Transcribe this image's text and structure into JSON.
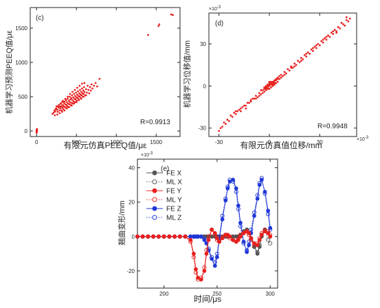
{
  "chart_data": [
    {
      "id": "c",
      "type": "scatter",
      "panel_label": "(c)",
      "xlabel": "有限元仿真PEEQ值/με",
      "ylabel": "机器学习预测PEEQ值/με",
      "annotation": "R=0.9913",
      "xlim": [
        -80,
        1800
      ],
      "ylim": [
        -80,
        1800
      ],
      "xticks": [
        0,
        500,
        1000,
        1500
      ],
      "yticks": [
        0,
        500,
        1000,
        1500
      ],
      "colors": {
        "points": "#e8201e"
      },
      "points": [
        [
          0,
          -25
        ],
        [
          0,
          -10
        ],
        [
          0,
          0
        ],
        [
          0,
          8
        ],
        [
          2,
          15
        ],
        [
          3,
          -5
        ],
        [
          4,
          30
        ],
        [
          1,
          -18
        ],
        [
          5,
          5
        ],
        [
          6,
          12
        ],
        [
          1400,
          1400
        ],
        [
          1530,
          1530
        ],
        [
          1540,
          1555
        ],
        [
          1690,
          1700
        ],
        [
          1710,
          1690
        ],
        [
          200,
          250
        ],
        [
          215,
          270
        ],
        [
          225,
          300
        ],
        [
          235,
          285
        ],
        [
          245,
          330
        ],
        [
          250,
          360
        ],
        [
          260,
          310
        ],
        [
          265,
          280
        ],
        [
          275,
          340
        ],
        [
          280,
          380
        ],
        [
          290,
          300
        ],
        [
          295,
          355
        ],
        [
          300,
          330
        ],
        [
          305,
          395
        ],
        [
          310,
          360
        ],
        [
          315,
          300
        ],
        [
          320,
          420
        ],
        [
          325,
          345
        ],
        [
          330,
          380
        ],
        [
          335,
          320
        ],
        [
          340,
          360
        ],
        [
          345,
          410
        ],
        [
          350,
          430
        ],
        [
          355,
          350
        ],
        [
          360,
          390
        ],
        [
          365,
          340
        ],
        [
          370,
          450
        ],
        [
          375,
          380
        ],
        [
          380,
          420
        ],
        [
          385,
          360
        ],
        [
          390,
          470
        ],
        [
          395,
          400
        ],
        [
          400,
          350
        ],
        [
          405,
          440
        ],
        [
          410,
          390
        ],
        [
          415,
          500
        ],
        [
          420,
          420
        ],
        [
          425,
          460
        ],
        [
          430,
          380
        ],
        [
          435,
          480
        ],
        [
          440,
          410
        ],
        [
          445,
          520
        ],
        [
          450,
          450
        ],
        [
          455,
          400
        ],
        [
          460,
          490
        ],
        [
          465,
          430
        ],
        [
          470,
          540
        ],
        [
          475,
          470
        ],
        [
          480,
          420
        ],
        [
          485,
          510
        ],
        [
          490,
          460
        ],
        [
          495,
          560
        ],
        [
          500,
          490
        ],
        [
          505,
          440
        ],
        [
          510,
          530
        ],
        [
          515,
          480
        ],
        [
          520,
          580
        ],
        [
          525,
          510
        ],
        [
          530,
          460
        ],
        [
          535,
          550
        ],
        [
          540,
          500
        ],
        [
          545,
          600
        ],
        [
          550,
          530
        ],
        [
          555,
          480
        ],
        [
          560,
          570
        ],
        [
          565,
          520
        ],
        [
          570,
          620
        ],
        [
          575,
          550
        ],
        [
          580,
          500
        ],
        [
          585,
          590
        ],
        [
          590,
          540
        ],
        [
          595,
          640
        ],
        [
          600,
          570
        ],
        [
          610,
          520
        ],
        [
          620,
          610
        ],
        [
          630,
          560
        ],
        [
          640,
          660
        ],
        [
          650,
          600
        ],
        [
          660,
          550
        ],
        [
          670,
          640
        ],
        [
          680,
          590
        ],
        [
          690,
          680
        ],
        [
          700,
          620
        ],
        [
          720,
          660
        ],
        [
          740,
          700
        ],
        [
          760,
          650
        ],
        [
          790,
          760
        ],
        [
          230,
          230
        ],
        [
          260,
          240
        ],
        [
          290,
          260
        ],
        [
          320,
          280
        ],
        [
          350,
          300
        ],
        [
          380,
          330
        ],
        [
          410,
          350
        ],
        [
          440,
          370
        ],
        [
          470,
          400
        ],
        [
          500,
          420
        ],
        [
          530,
          450
        ],
        [
          560,
          470
        ],
        [
          590,
          500
        ],
        [
          620,
          520
        ],
        [
          240,
          320
        ],
        [
          270,
          360
        ],
        [
          300,
          400
        ],
        [
          330,
          440
        ],
        [
          360,
          470
        ],
        [
          390,
          500
        ],
        [
          420,
          540
        ],
        [
          450,
          570
        ],
        [
          480,
          600
        ],
        [
          510,
          630
        ],
        [
          540,
          660
        ],
        [
          570,
          690
        ],
        [
          600,
          700
        ]
      ]
    },
    {
      "id": "d",
      "type": "scatter",
      "panel_label": "(d)",
      "xlabel": "有限元仿真值位移/mm",
      "ylabel": "机器学习位移值/mm",
      "annotation": "R=0.9948",
      "y_exponent": "×10",
      "y_exponent_power": "-3",
      "x_exponent": "×10",
      "x_exponent_power": "-3",
      "xlim": [
        -36,
        52
      ],
      "ylim": [
        -36,
        52
      ],
      "xticks": [
        -30,
        0,
        30
      ],
      "yticks": [
        -30,
        0,
        30
      ],
      "colors": {
        "points": "#e8201e"
      },
      "points": [
        [
          -30,
          -32
        ],
        [
          -28,
          -29
        ],
        [
          -27,
          -26
        ],
        [
          -25,
          -24
        ],
        [
          -24,
          -25
        ],
        [
          -23,
          -21
        ],
        [
          -22,
          -22
        ],
        [
          -21,
          -19
        ],
        [
          -20,
          -20
        ],
        [
          -19,
          -18
        ],
        [
          -18,
          -17
        ],
        [
          -17,
          -16
        ],
        [
          -16,
          -15
        ],
        [
          -15,
          -14
        ],
        [
          -14,
          -14
        ],
        [
          -13,
          -12
        ],
        [
          -12,
          -12
        ],
        [
          -11,
          -10
        ],
        [
          -10,
          -9
        ],
        [
          -9,
          -9
        ],
        [
          -8,
          -7
        ],
        [
          -7,
          -8
        ],
        [
          -6,
          -5
        ],
        [
          -5,
          -6
        ],
        [
          -4,
          -3
        ],
        [
          -3,
          -4
        ],
        [
          -2,
          -1
        ],
        [
          -1,
          -2
        ],
        [
          0,
          0
        ],
        [
          1,
          1
        ],
        [
          2,
          2
        ],
        [
          3,
          1
        ],
        [
          4,
          4
        ],
        [
          5,
          5
        ],
        [
          -3,
          -1
        ],
        [
          -2,
          -3
        ],
        [
          -1,
          0
        ],
        [
          0,
          -2
        ],
        [
          1,
          3
        ],
        [
          2,
          0
        ],
        [
          3,
          4
        ],
        [
          0,
          2
        ],
        [
          -1,
          1
        ],
        [
          1,
          -1
        ],
        [
          2,
          3
        ],
        [
          -2,
          0
        ],
        [
          4,
          2
        ],
        [
          5,
          3
        ],
        [
          6,
          7
        ],
        [
          6,
          5
        ],
        [
          7,
          8
        ],
        [
          8,
          7
        ],
        [
          9,
          10
        ],
        [
          10,
          9
        ],
        [
          11,
          12
        ],
        [
          12,
          11
        ],
        [
          13,
          14
        ],
        [
          14,
          13
        ],
        [
          15,
          16
        ],
        [
          16,
          15
        ],
        [
          17,
          18
        ],
        [
          18,
          17
        ],
        [
          19,
          20
        ],
        [
          20,
          19
        ],
        [
          21,
          22
        ],
        [
          22,
          21
        ],
        [
          23,
          24
        ],
        [
          24,
          23
        ],
        [
          25,
          26
        ],
        [
          26,
          25
        ],
        [
          27,
          28
        ],
        [
          28,
          27
        ],
        [
          29,
          30
        ],
        [
          30,
          29
        ],
        [
          31,
          32
        ],
        [
          32,
          31
        ],
        [
          33,
          34
        ],
        [
          34,
          33
        ],
        [
          35,
          36
        ],
        [
          36,
          35
        ],
        [
          37,
          38
        ],
        [
          38,
          37
        ],
        [
          39,
          40
        ],
        [
          40,
          39
        ],
        [
          41,
          42
        ],
        [
          42,
          41
        ],
        [
          43,
          45
        ],
        [
          45,
          43
        ],
        [
          46,
          47
        ],
        [
          47,
          46
        ],
        [
          48,
          48
        ],
        [
          -26,
          -27
        ],
        [
          -20,
          -18
        ],
        [
          -14,
          -16
        ],
        [
          -8,
          -9
        ],
        [
          -4,
          -5
        ],
        [
          3,
          3
        ],
        [
          9,
          8
        ],
        [
          15,
          14
        ],
        [
          22,
          23
        ],
        [
          28,
          29
        ],
        [
          34,
          35
        ],
        [
          40,
          38
        ],
        [
          44,
          44
        ],
        [
          -29,
          -30
        ],
        [
          -17,
          -18
        ],
        [
          -11,
          -11
        ],
        [
          -6,
          -7
        ],
        [
          0,
          1
        ],
        [
          7,
          6
        ],
        [
          13,
          13
        ],
        [
          19,
          18
        ],
        [
          26,
          27
        ],
        [
          32,
          33
        ],
        [
          38,
          39
        ],
        [
          46,
          49
        ],
        [
          -5,
          -3
        ],
        [
          -3,
          -2
        ],
        [
          -1,
          -1
        ],
        [
          1,
          2
        ],
        [
          3,
          2
        ],
        [
          5,
          6
        ],
        [
          -2,
          -2
        ],
        [
          0,
          3
        ],
        [
          2,
          1
        ],
        [
          4,
          5
        ]
      ]
    },
    {
      "id": "e",
      "type": "line",
      "panel_label": "(e)",
      "xlabel": "时间/μs",
      "ylabel": "翘曲变形/mm",
      "y_exponent": "×10",
      "y_exponent_power": "-3",
      "xlim": [
        175,
        307
      ],
      "ylim": [
        -30,
        45
      ],
      "xticks": [
        200,
        250,
        300
      ],
      "yticks": [
        -20,
        0,
        20,
        40
      ],
      "x": [
        175,
        180,
        185,
        190,
        195,
        200,
        205,
        210,
        215,
        220,
        225,
        228,
        230,
        232,
        235,
        238,
        240,
        242,
        245,
        248,
        250,
        252,
        255,
        258,
        260,
        262,
        265,
        268,
        270,
        272,
        275,
        278,
        280,
        282,
        285,
        288,
        290,
        292,
        295,
        298,
        300
      ],
      "series": [
        {
          "name": "FE  X",
          "color": "#555555",
          "marker": "filled",
          "values": [
            0,
            0,
            0,
            0,
            0,
            0,
            0,
            0,
            0,
            0,
            0,
            0,
            0,
            0,
            0,
            0,
            0,
            0,
            0,
            0,
            0,
            0,
            0,
            0,
            0,
            0,
            0,
            0,
            0,
            1,
            3,
            4,
            2,
            -1,
            -6,
            -10,
            -6,
            0,
            4,
            2,
            0
          ]
        },
        {
          "name": "ML  X",
          "color": "#555555",
          "marker": "open",
          "values": [
            0,
            0,
            0,
            0,
            0,
            0,
            0,
            0,
            0,
            0,
            0,
            0,
            0,
            0,
            0,
            0,
            0,
            0,
            0,
            0,
            0,
            0,
            0,
            0,
            0,
            0,
            0,
            0,
            0,
            1,
            3,
            4,
            2,
            -1,
            -6,
            -9,
            -5,
            1,
            4,
            -2,
            -4
          ]
        },
        {
          "name": "FE  Y",
          "color": "#e8201e",
          "marker": "filled",
          "values": [
            0,
            0,
            0,
            0,
            0,
            0,
            0,
            0,
            0,
            0,
            -2,
            -10,
            -19,
            -24,
            -25,
            -20,
            -10,
            -2,
            4,
            2,
            -1,
            -3,
            -1,
            1,
            1,
            0,
            -2,
            -3,
            -2,
            0,
            2,
            3,
            2,
            -1,
            -4,
            -5,
            -2,
            1,
            3,
            2,
            0
          ]
        },
        {
          "name": "ML  Y",
          "color": "#e8201e",
          "marker": "open",
          "values": [
            0,
            0,
            0,
            0,
            0,
            0,
            0,
            0,
            0,
            0,
            -3,
            -12,
            -21,
            -25,
            -24,
            -18,
            -8,
            0,
            4,
            1,
            -2,
            -3,
            0,
            1,
            0,
            -1,
            -2,
            -3,
            -1,
            1,
            2,
            3,
            1,
            -2,
            -5,
            -4,
            -1,
            2,
            4,
            3,
            1
          ]
        },
        {
          "name": "FE  Z",
          "color": "#2038d8",
          "marker": "filled",
          "values": [
            0,
            0,
            0,
            0,
            0,
            0,
            0,
            0,
            0,
            0,
            0,
            0,
            0,
            0,
            0,
            -2,
            -4,
            -8,
            -13,
            -17,
            -12,
            -2,
            10,
            21,
            28,
            32,
            33,
            28,
            18,
            8,
            -3,
            -9,
            -5,
            2,
            12,
            22,
            30,
            33,
            26,
            15,
            5
          ]
        },
        {
          "name": "ML  Z",
          "color": "#2038d8",
          "marker": "open",
          "values": [
            0,
            0,
            0,
            0,
            0,
            0,
            0,
            0,
            0,
            0,
            0,
            0,
            0,
            0,
            0,
            -1,
            -3,
            -7,
            -12,
            -15,
            -10,
            0,
            12,
            22,
            29,
            33,
            32,
            26,
            16,
            6,
            -4,
            -8,
            -3,
            4,
            14,
            24,
            31,
            34,
            25,
            13,
            4
          ]
        }
      ]
    }
  ]
}
